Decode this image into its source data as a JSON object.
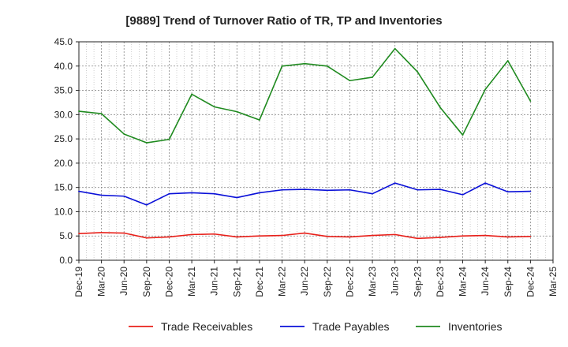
{
  "chart_data": {
    "type": "line",
    "title": "[9889]  Trend of Turnover Ratio of TR, TP and Inventories",
    "xlabel": "",
    "ylabel": "",
    "ylim": [
      0,
      45
    ],
    "y_ticks": [
      "0.0",
      "5.0",
      "10.0",
      "15.0",
      "20.0",
      "25.0",
      "30.0",
      "35.0",
      "40.0",
      "45.0"
    ],
    "y_tick_values": [
      0,
      5,
      10,
      15,
      20,
      25,
      30,
      35,
      40,
      45
    ],
    "x_tick_labels": [
      "Dec-19",
      "Mar-20",
      "Jun-20",
      "Sep-20",
      "Dec-20",
      "Mar-21",
      "Jun-21",
      "Sep-21",
      "Dec-21",
      "Mar-22",
      "Jun-22",
      "Sep-22",
      "Dec-22",
      "Mar-23",
      "Jun-23",
      "Sep-23",
      "Dec-23",
      "Mar-24",
      "Jun-24",
      "Sep-24",
      "Dec-24",
      "Mar-25"
    ],
    "x": [
      "Dec-19",
      "Mar-20",
      "Jun-20",
      "Sep-20",
      "Dec-20",
      "Mar-21",
      "Jun-21",
      "Sep-21",
      "Dec-21",
      "Mar-22",
      "Jun-22",
      "Sep-22",
      "Dec-22",
      "Mar-23",
      "Jun-23",
      "Sep-23",
      "Dec-23",
      "Mar-24",
      "Jun-24",
      "Sep-24",
      "Dec-24"
    ],
    "grid": true,
    "legend_position": "bottom",
    "series": [
      {
        "name": "Trade Receivables",
        "color": "#e8201a",
        "values": [
          5.5,
          5.7,
          5.6,
          4.6,
          4.8,
          5.3,
          5.4,
          4.8,
          5.0,
          5.1,
          5.6,
          4.9,
          4.8,
          5.1,
          5.3,
          4.5,
          4.7,
          5.0,
          5.1,
          4.8,
          4.9
        ]
      },
      {
        "name": "Trade Payables",
        "color": "#0a10d8",
        "values": [
          14.2,
          13.4,
          13.2,
          11.4,
          13.7,
          13.9,
          13.7,
          12.9,
          13.9,
          14.5,
          14.6,
          14.4,
          14.5,
          13.7,
          15.9,
          14.5,
          14.6,
          13.5,
          15.9,
          14.1,
          14.2
        ]
      },
      {
        "name": "Inventories",
        "color": "#1f8a1f",
        "values": [
          30.7,
          30.2,
          26.0,
          24.2,
          24.9,
          34.2,
          31.6,
          30.6,
          28.9,
          40.0,
          40.5,
          40.0,
          37.0,
          37.7,
          43.6,
          38.8,
          31.5,
          25.8,
          35.2,
          41.1,
          32.8
        ]
      }
    ]
  }
}
